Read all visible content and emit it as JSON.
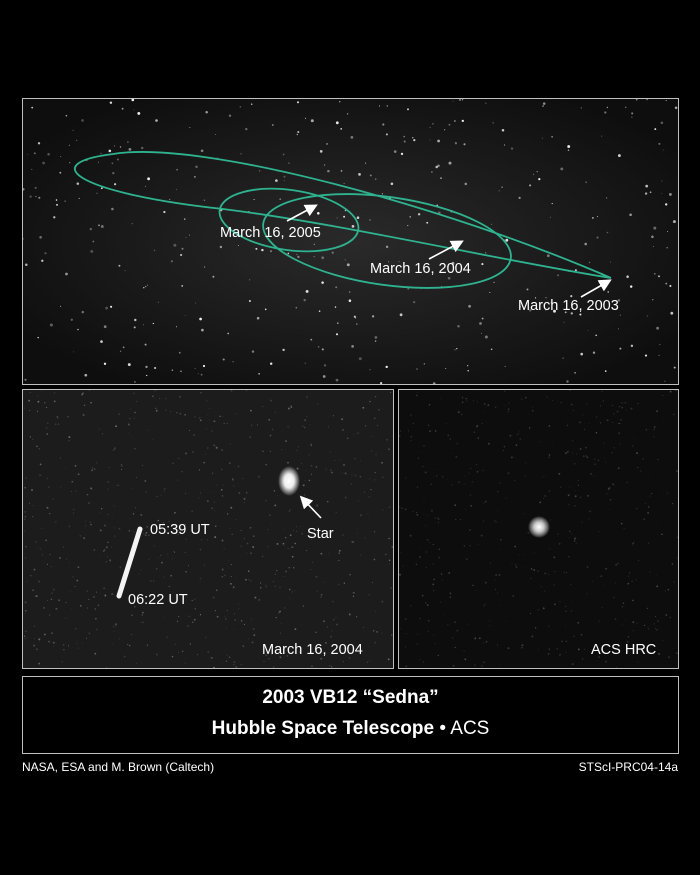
{
  "top_panel": {
    "orbit_color": "#2fb38f",
    "labels": {
      "date_2005": "March 16, 2005",
      "date_2004": "March 16, 2004",
      "date_2003": "March 16, 2003"
    }
  },
  "left_panel": {
    "time_start": "05:39 UT",
    "time_end": "06:22 UT",
    "star_label": "Star",
    "date": "March 16, 2004"
  },
  "right_panel": {
    "instrument": "ACS HRC"
  },
  "caption": {
    "title_line1": "2003 VB12 “Sedna”",
    "title_line2_bold": "Hubble Space Telescope",
    "bullet": "•",
    "title_line2_light": "ACS"
  },
  "credits": {
    "left": "NASA, ESA and M. Brown (Caltech)",
    "right": "STScI-PRC04-14a"
  }
}
